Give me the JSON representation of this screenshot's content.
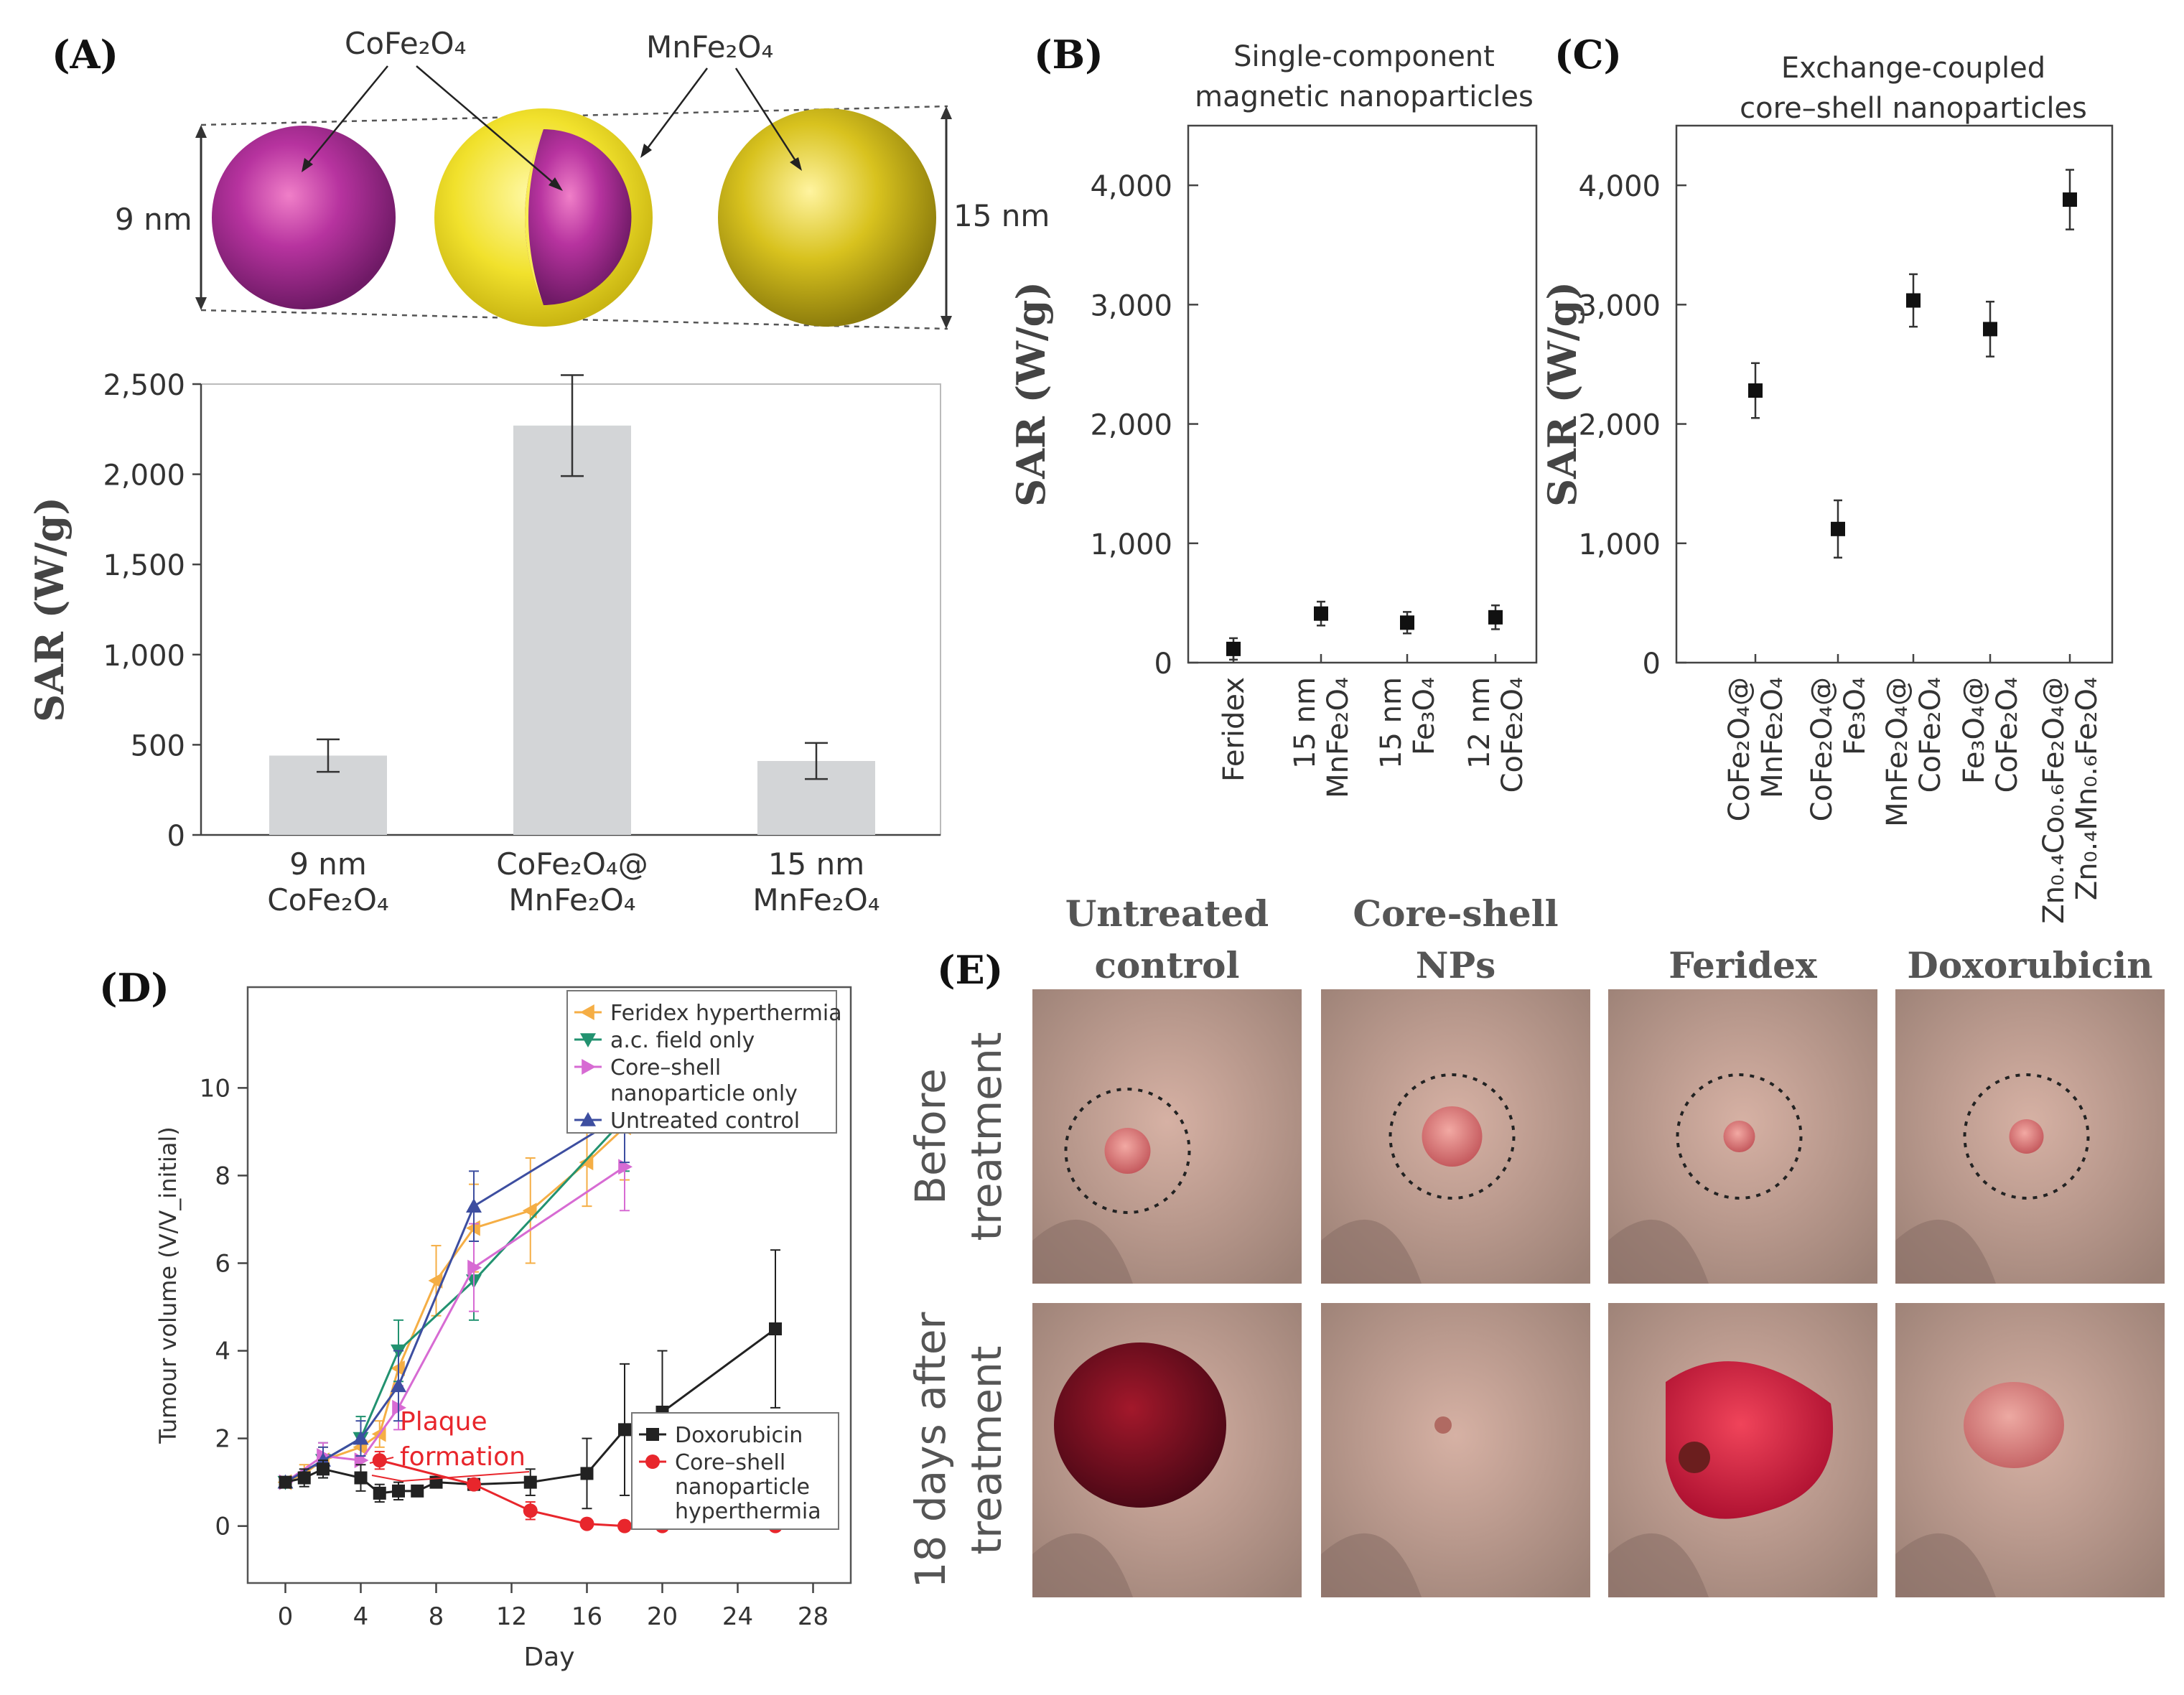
{
  "panels": {
    "A": {
      "label": "(A)",
      "labels": {
        "core": "CoFe₂O₄",
        "shell": "MnFe₂O₄",
        "size_left": "9 nm",
        "size_right": "15 nm"
      }
    },
    "B": {
      "label": "(B)"
    },
    "C": {
      "label": "(C)"
    },
    "D": {
      "label": "(D)",
      "annotation": [
        "Plaque",
        "formation"
      ]
    },
    "E": {
      "label": "(E)",
      "columns": [
        [
          "Untreated",
          "control"
        ],
        [
          "Core-shell",
          "NPs"
        ],
        [
          "Feridex"
        ],
        [
          "Doxorubicin"
        ]
      ],
      "rows": [
        [
          "Before",
          "treatment"
        ],
        [
          "18 days after",
          "treatment"
        ]
      ]
    }
  },
  "colors": {
    "magenta": "#b7339f",
    "gold": "#d8c21e",
    "bar": "#d3d5d7"
  },
  "chart_data": [
    {
      "id": "A",
      "type": "bar",
      "title": "",
      "ylabel": "SAR (W/g)",
      "ylim": [
        0,
        2500
      ],
      "yticks": [
        0,
        500,
        1000,
        1500,
        2000,
        2500
      ],
      "ytick_labels": [
        "0",
        "500",
        "1,000",
        "1,500",
        "2,000",
        "2,500"
      ],
      "categories": [
        [
          "9 nm",
          "CoFe₂O₄"
        ],
        [
          "CoFe₂O₄@",
          "MnFe₂O₄"
        ],
        [
          "15 nm",
          "MnFe₂O₄"
        ]
      ],
      "values": [
        440,
        2270,
        410
      ],
      "errors": [
        90,
        280,
        100
      ]
    },
    {
      "id": "B",
      "type": "scatter",
      "title": [
        "Single-component",
        "magnetic nanoparticles"
      ],
      "ylabel": "SAR (W/g)",
      "ylim": [
        0,
        4500
      ],
      "yticks": [
        0,
        1000,
        2000,
        3000,
        4000
      ],
      "ytick_labels": [
        "0",
        "1,000",
        "2,000",
        "3,000",
        "4,000"
      ],
      "categories": [
        [
          "Feridex"
        ],
        [
          "15 nm",
          "MnFe₂O₄"
        ],
        [
          "15 nm",
          "Fe₃O₄"
        ],
        [
          "12 nm",
          "CoFe₂O₄"
        ]
      ],
      "values": [
        115,
        411,
        335,
        380
      ],
      "errors": [
        90,
        100,
        90,
        100
      ]
    },
    {
      "id": "C",
      "type": "scatter",
      "title": [
        "Exchange-coupled",
        "core–shell nanoparticles"
      ],
      "ylabel": "SAR (W/g)",
      "ylim": [
        0,
        4500
      ],
      "yticks": [
        0,
        1000,
        2000,
        3000,
        4000
      ],
      "ytick_labels": [
        "0",
        "1,000",
        "2,000",
        "3,000",
        "4,000"
      ],
      "categories": [
        [
          "CoFe₂O₄@",
          "MnFe₂O₄"
        ],
        [
          "CoFe₂O₄@",
          "Fe₃O₄"
        ],
        [
          "MnFe₂O₄@",
          "CoFe₂O₄"
        ],
        [
          "Fe₃O₄@",
          "CoFe₂O₄"
        ],
        [
          "Zn₀.₄Co₀.₆Fe₂O₄@",
          "Zn₀.₄Mn₀.₆Fe₂O₄"
        ]
      ],
      "values": [
        2280,
        1120,
        3035,
        2795,
        3880
      ],
      "errors": [
        230,
        240,
        220,
        230,
        250
      ]
    },
    {
      "id": "D",
      "type": "line",
      "xlabel": "Day",
      "ylabel": "Tumour volume (V/V_initial)",
      "xlim": [
        -2,
        30
      ],
      "ylim": [
        -1.3,
        12.3
      ],
      "xticks": [
        0,
        4,
        8,
        12,
        16,
        20,
        24,
        28
      ],
      "yticks": [
        0,
        2,
        4,
        6,
        8,
        10
      ],
      "series": [
        {
          "name": "Feridex hyperthermia",
          "color": "#f5ae45",
          "marker": "tri-left",
          "x": [
            0,
            1,
            2,
            4,
            5,
            6,
            8,
            10,
            13,
            16,
            18
          ],
          "y": [
            1.0,
            1.2,
            1.5,
            1.8,
            2.1,
            3.6,
            5.6,
            6.8,
            7.2,
            8.3,
            9.1
          ],
          "err": [
            0.1,
            0.2,
            0.3,
            0.3,
            0.3,
            0.5,
            0.8,
            1.0,
            1.2,
            1.0,
            1.2
          ]
        },
        {
          "name": "a.c. field only",
          "color": "#229270",
          "marker": "tri-down",
          "x": [
            0,
            2,
            4,
            6,
            10,
            18
          ],
          "y": [
            1.0,
            1.5,
            2.0,
            4.0,
            5.6,
            9.3
          ],
          "err": [
            0.1,
            0.4,
            0.5,
            0.7,
            0.9,
            1.2
          ]
        },
        {
          "name": "Core–shell nanoparticle only",
          "color": "#d76bd3",
          "marker": "tri-right",
          "x": [
            0,
            2,
            4,
            6,
            10,
            18
          ],
          "y": [
            1.0,
            1.6,
            1.5,
            2.7,
            5.9,
            8.2
          ],
          "err": [
            0.1,
            0.3,
            0.4,
            0.5,
            1.0,
            1.0
          ]
        },
        {
          "name": "Untreated control",
          "color": "#3d4ea0",
          "marker": "tri-up",
          "x": [
            0,
            2,
            4,
            6,
            10,
            18
          ],
          "y": [
            1.0,
            1.5,
            2.0,
            3.2,
            7.3,
            9.4
          ],
          "err": [
            0.1,
            0.3,
            0.4,
            0.8,
            0.8,
            1.1
          ]
        },
        {
          "name": "Doxorubicin",
          "color": "#222222",
          "marker": "square",
          "x": [
            0,
            1,
            2,
            4,
            5,
            6,
            7,
            8,
            10,
            13,
            16,
            18,
            20,
            26
          ],
          "y": [
            1.0,
            1.1,
            1.3,
            1.1,
            0.75,
            0.8,
            0.8,
            1.0,
            0.95,
            1.0,
            1.2,
            2.2,
            2.6,
            4.5
          ],
          "err": [
            0.1,
            0.2,
            0.2,
            0.3,
            0.2,
            0.2,
            0.1,
            0.1,
            0.1,
            0.3,
            0.8,
            1.5,
            1.4,
            1.8
          ]
        },
        {
          "name": "Core–shell nanoparticle hyperthermia",
          "color": "#e8262c",
          "marker": "circle",
          "x": [
            5,
            10,
            13,
            16,
            18,
            20,
            26
          ],
          "y": [
            1.5,
            0.95,
            0.35,
            0.05,
            0.0,
            0.0,
            0.0
          ],
          "err": [
            0.2,
            0.1,
            0.2,
            0.1,
            0.1,
            0.1,
            0.1
          ]
        }
      ],
      "legend_top": [
        [
          "Feridex hyperthermia"
        ],
        [
          "a.c. field only"
        ],
        [
          "Core–shell",
          "nanoparticle only"
        ],
        [
          "Untreated control"
        ]
      ],
      "legend_bottom": [
        [
          "Doxorubicin"
        ],
        [
          "Core–shell",
          "nanoparticle",
          "hyperthermia"
        ]
      ]
    }
  ]
}
